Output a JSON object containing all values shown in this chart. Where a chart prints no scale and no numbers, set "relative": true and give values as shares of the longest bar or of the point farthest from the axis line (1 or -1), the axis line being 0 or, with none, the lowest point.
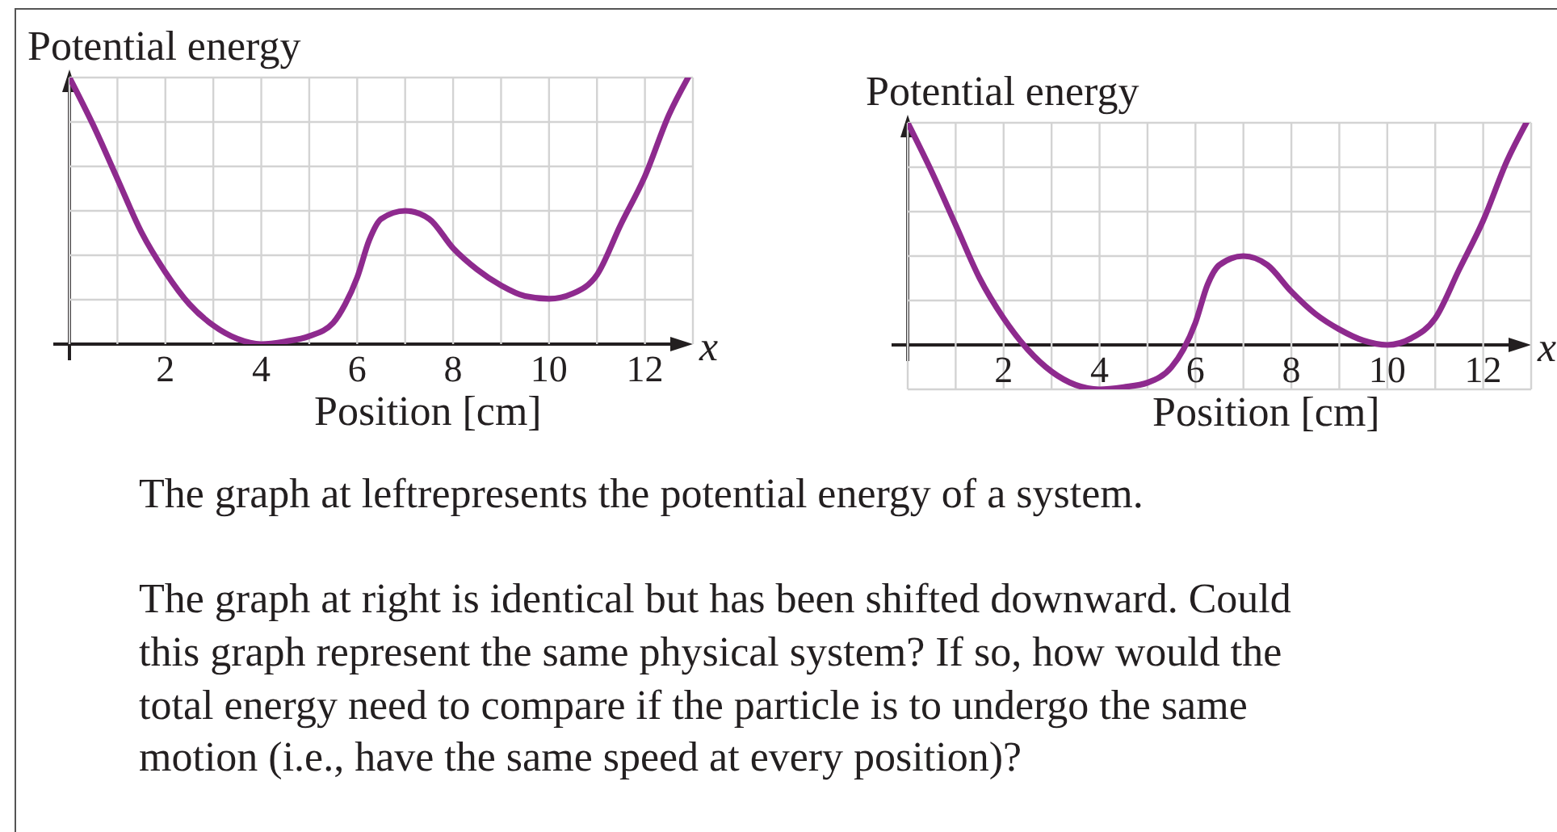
{
  "chart_data": [
    {
      "type": "line",
      "relative": true,
      "ylabel": "Potential energy",
      "xlabel": "Position [cm]",
      "annotations": [
        "x"
      ],
      "x": [
        0,
        0.5,
        1,
        1.5,
        2,
        2.5,
        3,
        3.5,
        4,
        4.5,
        5,
        5.5,
        5.75,
        6,
        6.25,
        6.5,
        7,
        7.5,
        8,
        8.5,
        9,
        9.5,
        10,
        10.5,
        11,
        11.5,
        12,
        12.5,
        12.9
      ],
      "xlim": [
        0,
        13
      ],
      "xticks": [
        {
          "value": 1,
          "label": null
        },
        2,
        {
          "value": 3,
          "label": null
        },
        4,
        {
          "value": 5,
          "label": null
        },
        6,
        {
          "value": 7,
          "label": null
        },
        8,
        {
          "value": 9,
          "label": null
        },
        10,
        {
          "value": 11,
          "label": null
        },
        12
      ],
      "grid": true,
      "series": [
        {
          "color": "#8e2a8e",
          "values": [
            1,
            0.82,
            0.62,
            0.42,
            0.27,
            0.15,
            0.07,
            0.02,
            0,
            0.01,
            0.03,
            0.08,
            0.15,
            0.25,
            0.39,
            0.47,
            0.5,
            0.47,
            0.36,
            0.28,
            0.22,
            0.18,
            0.17,
            0.19,
            0.26,
            0.45,
            0.63,
            0.86,
            1
          ]
        }
      ]
    },
    {
      "type": "line",
      "relative": true,
      "ylabel": "Potential energy",
      "xlabel": "Position [cm]",
      "annotations": [
        "x"
      ],
      "x": [
        0,
        0.5,
        1,
        1.5,
        2,
        2.5,
        3,
        3.5,
        4,
        4.5,
        5,
        5.5,
        5.75,
        6,
        6.25,
        6.5,
        7,
        7.5,
        8,
        8.5,
        9,
        9.5,
        10,
        10.5,
        11,
        11.5,
        12,
        12.5,
        12.9
      ],
      "xlim": [
        0,
        13
      ],
      "xticks": [
        {
          "value": 1,
          "label": null
        },
        2,
        {
          "value": 3,
          "label": null
        },
        4,
        {
          "value": 5,
          "label": null
        },
        6,
        {
          "value": 7,
          "label": null
        },
        8,
        {
          "value": 9,
          "label": null
        },
        10,
        {
          "value": 11,
          "label": null
        },
        12
      ],
      "grid": true,
      "series": [
        {
          "color": "#8e2a8e",
          "values": [
            1,
            0.78,
            0.54,
            0.3,
            0.12,
            -0.02,
            -0.12,
            -0.18,
            -0.2,
            -0.19,
            -0.17,
            -0.1,
            -0.02,
            0.1,
            0.27,
            0.36,
            0.4,
            0.36,
            0.24,
            0.14,
            0.07,
            0.02,
            0,
            0.03,
            0.12,
            0.34,
            0.56,
            0.83,
            1
          ]
        }
      ]
    },
    {
      "type": "other",
      "annotations": [
        "The graph at leftrepresents the potential energy of a system.",
        "The graph at right is identical but has been shifted downward. Could this graph represent the same physical system? If so, how would the total energy need to compare if the particle is to undergo the same motion (i.e., have the same speed at every position)?"
      ]
    }
  ]
}
